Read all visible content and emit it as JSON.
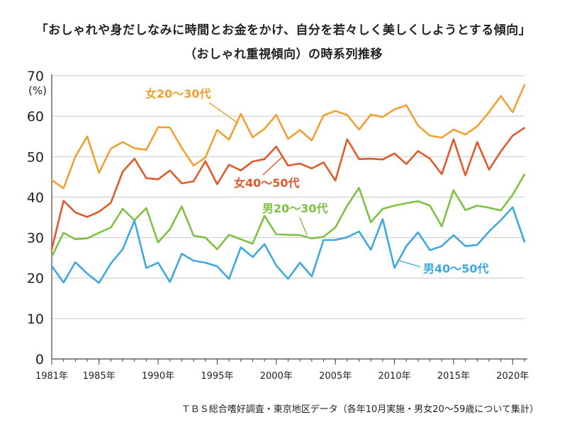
{
  "chart_data": {
    "type": "line",
    "title": "「おしゃれや身だしなみに時間とお金をかけ、自分を若々しく美しくしようとする傾向」",
    "subtitle": "（おしゃれ重視傾向）の時系列推移",
    "unit_label": "(%)",
    "ylim": [
      0,
      70
    ],
    "yticks": [
      0,
      10,
      20,
      30,
      40,
      50,
      60,
      70
    ],
    "xlim": [
      1981,
      2021
    ],
    "xticks": [
      {
        "value": 1981,
        "label": "1981年"
      },
      {
        "value": 1985,
        "label": "1985年"
      },
      {
        "value": 1990,
        "label": "1990年"
      },
      {
        "value": 1995,
        "label": "1995年"
      },
      {
        "value": 2000,
        "label": "2000年"
      },
      {
        "value": 2005,
        "label": "2005年"
      },
      {
        "value": 2010,
        "label": "2010年"
      },
      {
        "value": 2015,
        "label": "2015年"
      },
      {
        "value": 2020,
        "label": "2020年"
      }
    ],
    "grid": "horizontal",
    "x": [
      1981,
      1982,
      1983,
      1984,
      1985,
      1986,
      1987,
      1988,
      1989,
      1990,
      1991,
      1992,
      1993,
      1994,
      1995,
      1996,
      1997,
      1998,
      1999,
      2000,
      2001,
      2002,
      2003,
      2004,
      2005,
      2006,
      2007,
      2008,
      2009,
      2010,
      2011,
      2012,
      2013,
      2014,
      2015,
      2016,
      2017,
      2018,
      2019,
      2020,
      2021
    ],
    "series": [
      {
        "name": "女20～30代",
        "color": "#F0A030",
        "values": [
          44.2,
          42.2,
          50.0,
          55.0,
          46.0,
          52.0,
          53.6,
          52.1,
          51.7,
          57.3,
          57.2,
          52.2,
          47.8,
          49.8,
          56.6,
          54.2,
          60.6,
          54.8,
          56.9,
          60.3,
          54.4,
          56.6,
          54.0,
          60.2,
          61.3,
          60.3,
          56.7,
          60.4,
          59.8,
          61.7,
          62.7,
          57.7,
          55.2,
          54.7,
          56.7,
          55.5,
          57.5,
          61.0,
          65.0,
          61.0,
          67.7
        ]
      },
      {
        "name": "女40～50代",
        "color": "#E05A2B",
        "values": [
          27.1,
          39.1,
          36.2,
          35.1,
          36.4,
          38.6,
          46.3,
          49.5,
          44.7,
          44.4,
          46.6,
          43.4,
          43.9,
          48.9,
          43.2,
          48.0,
          46.6,
          48.8,
          49.4,
          52.5,
          47.8,
          48.3,
          47.1,
          48.6,
          44.1,
          54.3,
          49.4,
          49.5,
          49.3,
          50.8,
          48.2,
          51.4,
          49.5,
          45.7,
          54.3,
          45.4,
          53.6,
          46.8,
          51.3,
          55.2,
          57.1
        ]
      },
      {
        "name": "男20～30代",
        "color": "#7DC242",
        "values": [
          25.3,
          31.2,
          29.6,
          29.8,
          31.2,
          32.5,
          37.1,
          34.3,
          37.3,
          28.8,
          32.1,
          37.7,
          30.5,
          30.0,
          27.1,
          30.7,
          29.6,
          28.5,
          35.4,
          30.8,
          30.7,
          30.6,
          29.8,
          30.2,
          32.5,
          37.9,
          42.3,
          33.8,
          37.1,
          37.9,
          38.5,
          39.0,
          37.9,
          32.8,
          41.7,
          36.8,
          37.9,
          37.4,
          36.7,
          40.6,
          45.6
        ]
      },
      {
        "name": "男40～50代",
        "color": "#3EA8DF",
        "values": [
          23.0,
          18.9,
          23.9,
          21.1,
          18.8,
          23.6,
          27.1,
          34.2,
          22.5,
          23.8,
          19.0,
          26.0,
          24.3,
          23.8,
          22.9,
          19.8,
          27.6,
          25.2,
          28.4,
          23.1,
          19.8,
          23.8,
          20.4,
          29.4,
          29.4,
          30.1,
          31.5,
          27.0,
          34.6,
          22.5,
          27.9,
          31.3,
          26.9,
          27.9,
          30.6,
          27.9,
          28.2,
          31.5,
          34.3,
          37.5,
          29.0
        ]
      }
    ],
    "annotations": [
      {
        "series": 0,
        "text": "女20～30代"
      },
      {
        "series": 1,
        "text": "女40～50代"
      },
      {
        "series": 2,
        "text": "男20～30代"
      },
      {
        "series": 3,
        "text": "男40～50代"
      }
    ],
    "source": "ＴＢＳ総合嗜好調査・東京地区データ（各年10月実施・男女20～59歳について集計）"
  }
}
